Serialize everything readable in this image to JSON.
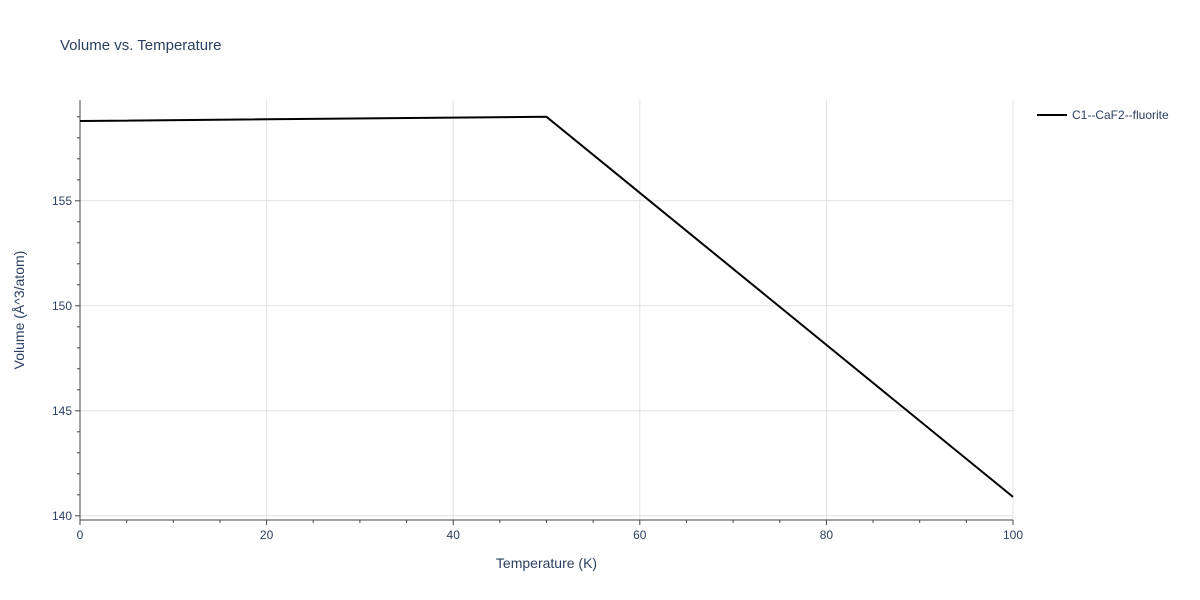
{
  "chart_data": {
    "type": "line",
    "title": "Volume vs. Temperature",
    "xlabel": "Temperature (K)",
    "ylabel": "Volume (Å^3/atom)",
    "xlim": [
      0,
      100
    ],
    "ylim": [
      139.8,
      159.8
    ],
    "x_ticks": [
      0,
      20,
      40,
      60,
      80,
      100
    ],
    "y_ticks": [
      140,
      145,
      150,
      155
    ],
    "x_minor_step": 5,
    "y_minor_step": 1,
    "grid": true,
    "legend_position": "top-right",
    "series": [
      {
        "name": "C1--CaF2--fluorite",
        "color": "#000000",
        "x": [
          0,
          50,
          100
        ],
        "y": [
          158.8,
          159.0,
          140.9
        ]
      }
    ]
  }
}
